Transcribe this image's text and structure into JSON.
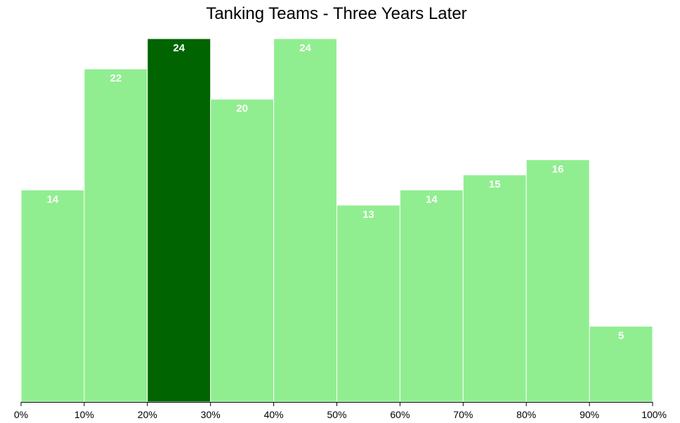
{
  "chart_data": {
    "type": "bar",
    "title": "Tanking Teams - Three Years Later",
    "xlabel": "",
    "ylabel": "",
    "bins": [
      {
        "range": [
          0,
          10
        ],
        "value": 14
      },
      {
        "range": [
          10,
          20
        ],
        "value": 22
      },
      {
        "range": [
          20,
          30
        ],
        "value": 24
      },
      {
        "range": [
          30,
          40
        ],
        "value": 20
      },
      {
        "range": [
          40,
          50
        ],
        "value": 24
      },
      {
        "range": [
          50,
          60
        ],
        "value": 13
      },
      {
        "range": [
          60,
          70
        ],
        "value": 14
      },
      {
        "range": [
          70,
          80
        ],
        "value": 15
      },
      {
        "range": [
          80,
          90
        ],
        "value": 16
      },
      {
        "range": [
          90,
          100
        ],
        "value": 5
      }
    ],
    "x_ticks": [
      "0%",
      "10%",
      "20%",
      "30%",
      "40%",
      "50%",
      "60%",
      "70%",
      "80%",
      "90%",
      "100%"
    ],
    "highlighted_bin": 2,
    "ylim": [
      0,
      24
    ],
    "grid": false,
    "colors": {
      "bar": "#90ee90",
      "highlight": "#006400",
      "label": "#ffffff",
      "axis": "#000000"
    }
  }
}
